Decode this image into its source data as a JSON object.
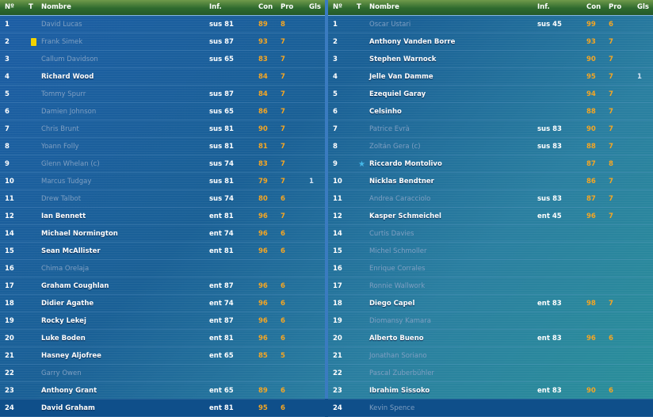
{
  "columns": {
    "num": "Nº",
    "t": "T",
    "name": "Nombre",
    "inf": "Inf.",
    "con": "Con",
    "pro": "Pro",
    "gls": "Gls"
  },
  "left_players": [
    {
      "num": "1",
      "name": "David Lucas",
      "inf": "sus 81",
      "con": "89",
      "pro": "8",
      "gls": "",
      "dim": true,
      "icon": ""
    },
    {
      "num": "2",
      "name": "Frank Simek",
      "inf": "sus 87",
      "con": "93",
      "pro": "7",
      "gls": "",
      "dim": true,
      "icon": "yellow-card-icon"
    },
    {
      "num": "3",
      "name": "Callum Davidson",
      "inf": "sus 65",
      "con": "83",
      "pro": "7",
      "gls": "",
      "dim": true,
      "icon": ""
    },
    {
      "num": "4",
      "name": "Richard Wood",
      "inf": "",
      "con": "84",
      "pro": "7",
      "gls": "",
      "dim": false,
      "icon": ""
    },
    {
      "num": "5",
      "name": "Tommy Spurr",
      "inf": "sus 87",
      "con": "84",
      "pro": "7",
      "gls": "",
      "dim": true,
      "icon": ""
    },
    {
      "num": "6",
      "name": "Damien Johnson",
      "inf": "sus 65",
      "con": "86",
      "pro": "7",
      "gls": "",
      "dim": true,
      "icon": ""
    },
    {
      "num": "7",
      "name": "Chris Brunt",
      "inf": "sus 81",
      "con": "90",
      "pro": "7",
      "gls": "",
      "dim": true,
      "icon": ""
    },
    {
      "num": "8",
      "name": "Yoann Folly",
      "inf": "sus 81",
      "con": "81",
      "pro": "7",
      "gls": "",
      "dim": true,
      "icon": ""
    },
    {
      "num": "9",
      "name": "Glenn Whelan (c)",
      "inf": "sus 74",
      "con": "83",
      "pro": "7",
      "gls": "",
      "dim": true,
      "icon": ""
    },
    {
      "num": "10",
      "name": "Marcus Tudgay",
      "inf": "sus 81",
      "con": "79",
      "pro": "7",
      "gls": "1",
      "dim": true,
      "icon": ""
    },
    {
      "num": "11",
      "name": "Drew Talbot",
      "inf": "sus 74",
      "con": "80",
      "pro": "6",
      "gls": "",
      "dim": true,
      "icon": ""
    },
    {
      "num": "12",
      "name": "Ian Bennett",
      "inf": "ent 81",
      "con": "96",
      "pro": "7",
      "gls": "",
      "dim": false,
      "icon": ""
    },
    {
      "num": "14",
      "name": "Michael Normington",
      "inf": "ent 74",
      "con": "96",
      "pro": "6",
      "gls": "",
      "dim": false,
      "icon": ""
    },
    {
      "num": "15",
      "name": "Sean McAllister",
      "inf": "ent 81",
      "con": "96",
      "pro": "6",
      "gls": "",
      "dim": false,
      "icon": ""
    },
    {
      "num": "16",
      "name": "Chima Orelaja",
      "inf": "",
      "con": "",
      "pro": "",
      "gls": "",
      "dim": true,
      "icon": ""
    },
    {
      "num": "17",
      "name": "Graham Coughlan",
      "inf": "ent 87",
      "con": "96",
      "pro": "6",
      "gls": "",
      "dim": false,
      "icon": ""
    },
    {
      "num": "18",
      "name": "Didier Agathe",
      "inf": "ent 74",
      "con": "96",
      "pro": "6",
      "gls": "",
      "dim": false,
      "icon": ""
    },
    {
      "num": "19",
      "name": "Rocky Lekej",
      "inf": "ent 87",
      "con": "96",
      "pro": "6",
      "gls": "",
      "dim": false,
      "icon": ""
    },
    {
      "num": "20",
      "name": "Luke Boden",
      "inf": "ent 81",
      "con": "96",
      "pro": "6",
      "gls": "",
      "dim": false,
      "icon": ""
    },
    {
      "num": "21",
      "name": "Hasney Aljofree",
      "inf": "ent 65",
      "con": "85",
      "pro": "5",
      "gls": "",
      "dim": false,
      "icon": ""
    },
    {
      "num": "22",
      "name": "Garry Owen",
      "inf": "",
      "con": "",
      "pro": "",
      "gls": "",
      "dim": true,
      "icon": ""
    },
    {
      "num": "23",
      "name": "Anthony Grant",
      "inf": "ent 65",
      "con": "89",
      "pro": "6",
      "gls": "",
      "dim": false,
      "icon": ""
    },
    {
      "num": "24",
      "name": "David Graham",
      "inf": "ent 81",
      "con": "95",
      "pro": "6",
      "gls": "",
      "dim": false,
      "icon": ""
    }
  ],
  "right_players": [
    {
      "num": "1",
      "name": "Oscar Ustari",
      "inf": "sus 45",
      "con": "99",
      "pro": "6",
      "gls": "",
      "dim": true,
      "icon": ""
    },
    {
      "num": "2",
      "name": "Anthony Vanden Borre",
      "inf": "",
      "con": "93",
      "pro": "7",
      "gls": "",
      "dim": false,
      "icon": ""
    },
    {
      "num": "3",
      "name": "Stephen Warnock",
      "inf": "",
      "con": "90",
      "pro": "7",
      "gls": "",
      "dim": false,
      "icon": ""
    },
    {
      "num": "4",
      "name": "Jelle Van Damme",
      "inf": "",
      "con": "95",
      "pro": "7",
      "gls": "1",
      "dim": false,
      "icon": ""
    },
    {
      "num": "5",
      "name": "Ezequiel Garay",
      "inf": "",
      "con": "94",
      "pro": "7",
      "gls": "",
      "dim": false,
      "icon": ""
    },
    {
      "num": "6",
      "name": "Celsinho",
      "inf": "",
      "con": "88",
      "pro": "7",
      "gls": "",
      "dim": false,
      "icon": ""
    },
    {
      "num": "7",
      "name": "Patrice Evrà",
      "inf": "sus 83",
      "con": "90",
      "pro": "7",
      "gls": "",
      "dim": true,
      "icon": ""
    },
    {
      "num": "8",
      "name": "Zoltán Gera (c)",
      "inf": "sus 83",
      "con": "88",
      "pro": "7",
      "gls": "",
      "dim": true,
      "icon": ""
    },
    {
      "num": "9",
      "name": "Riccardo Montolivo",
      "inf": "",
      "con": "87",
      "pro": "8",
      "gls": "",
      "dim": false,
      "icon": "star-icon"
    },
    {
      "num": "10",
      "name": "Nicklas Bendtner",
      "inf": "",
      "con": "86",
      "pro": "7",
      "gls": "",
      "dim": false,
      "icon": ""
    },
    {
      "num": "11",
      "name": "Andrea Caracciolo",
      "inf": "sus 83",
      "con": "87",
      "pro": "7",
      "gls": "",
      "dim": true,
      "icon": ""
    },
    {
      "num": "12",
      "name": "Kasper Schmeichel",
      "inf": "ent 45",
      "con": "96",
      "pro": "7",
      "gls": "",
      "dim": false,
      "icon": ""
    },
    {
      "num": "14",
      "name": "Curtis Davies",
      "inf": "",
      "con": "",
      "pro": "",
      "gls": "",
      "dim": true,
      "icon": ""
    },
    {
      "num": "15",
      "name": "Michel Schmoller",
      "inf": "",
      "con": "",
      "pro": "",
      "gls": "",
      "dim": true,
      "icon": ""
    },
    {
      "num": "16",
      "name": "Enrique Corrales",
      "inf": "",
      "con": "",
      "pro": "",
      "gls": "",
      "dim": true,
      "icon": ""
    },
    {
      "num": "17",
      "name": "Ronnie Wallwork",
      "inf": "",
      "con": "",
      "pro": "",
      "gls": "",
      "dim": true,
      "icon": ""
    },
    {
      "num": "18",
      "name": "Diego Capel",
      "inf": "ent 83",
      "con": "98",
      "pro": "7",
      "gls": "",
      "dim": false,
      "icon": ""
    },
    {
      "num": "19",
      "name": "Diomansy Kamara",
      "inf": "",
      "con": "",
      "pro": "",
      "gls": "",
      "dim": true,
      "icon": ""
    },
    {
      "num": "20",
      "name": "Alberto Bueno",
      "inf": "ent 83",
      "con": "96",
      "pro": "6",
      "gls": "",
      "dim": false,
      "icon": ""
    },
    {
      "num": "21",
      "name": "Jonathan Soriano",
      "inf": "",
      "con": "",
      "pro": "",
      "gls": "",
      "dim": true,
      "icon": ""
    },
    {
      "num": "22",
      "name": "Pascal Zuberbühler",
      "inf": "",
      "con": "",
      "pro": "",
      "gls": "",
      "dim": true,
      "icon": ""
    },
    {
      "num": "23",
      "name": "Ibrahim Sissoko",
      "inf": "ent 83",
      "con": "90",
      "pro": "6",
      "gls": "",
      "dim": false,
      "icon": ""
    },
    {
      "num": "24",
      "name": "Kevin Spence",
      "inf": "",
      "con": "",
      "pro": "",
      "gls": "",
      "dim": true,
      "icon": ""
    }
  ]
}
